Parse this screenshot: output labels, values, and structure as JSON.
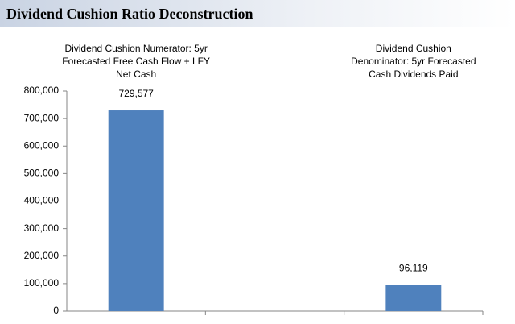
{
  "chart_data": {
    "type": "bar",
    "title": "Dividend Cushion Ratio Deconstruction",
    "categories": [
      "Dividend Cushion Numerator: 5yr Forecasted Free Cash Flow + LFY Net Cash",
      null,
      "Dividend Cushion Denominator: 5yr Forecasted Cash Dividends Paid"
    ],
    "values": [
      729577,
      null,
      96119
    ],
    "value_labels": [
      "729,577",
      null,
      "96,119"
    ],
    "color": "#4f81bd",
    "ylim": [
      0,
      800000
    ],
    "yticks": [
      0,
      {
        "value": 100000,
        "label": "100,000"
      },
      {
        "value": 200000,
        "label": "200,000"
      },
      {
        "value": 300000,
        "label": "300,000"
      },
      {
        "value": 400000,
        "label": "400,000"
      },
      {
        "value": 500000,
        "label": "500,000"
      },
      {
        "value": 600000,
        "label": "600,000"
      },
      {
        "value": 700000,
        "label": "700,000"
      },
      {
        "value": 800000,
        "label": "800,000"
      }
    ],
    "grid": false
  }
}
